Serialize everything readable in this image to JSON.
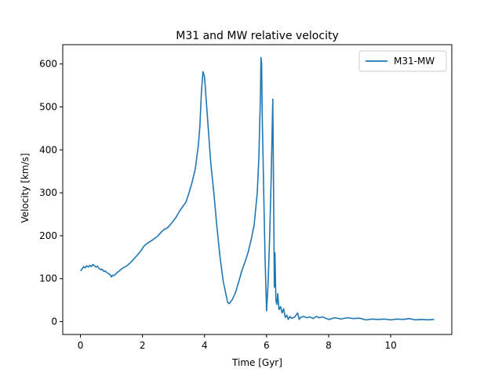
{
  "chart_data": {
    "type": "line",
    "title": "M31 and MW relative velocity",
    "xlabel": "Time [Gyr]",
    "ylabel": "Velocity [km/s]",
    "xlim": [
      -0.57,
      11.97
    ],
    "ylim": [
      -30,
      645
    ],
    "xticks": [
      0,
      2,
      4,
      6,
      8,
      10
    ],
    "yticks": [
      0,
      100,
      200,
      300,
      400,
      500,
      600
    ],
    "grid": false,
    "legend_position": "top-right",
    "series": [
      {
        "name": "M31-MW",
        "color": "#1f77b4",
        "points": [
          [
            0.0,
            118
          ],
          [
            0.05,
            122
          ],
          [
            0.1,
            128
          ],
          [
            0.15,
            125
          ],
          [
            0.2,
            130
          ],
          [
            0.25,
            127
          ],
          [
            0.3,
            131
          ],
          [
            0.35,
            128
          ],
          [
            0.4,
            133
          ],
          [
            0.45,
            130
          ],
          [
            0.5,
            127
          ],
          [
            0.55,
            129
          ],
          [
            0.6,
            124
          ],
          [
            0.65,
            121
          ],
          [
            0.7,
            122
          ],
          [
            0.75,
            117
          ],
          [
            0.8,
            118
          ],
          [
            0.85,
            114
          ],
          [
            0.9,
            112
          ],
          [
            0.95,
            110
          ],
          [
            1.0,
            104
          ],
          [
            1.03,
            108
          ],
          [
            1.08,
            107
          ],
          [
            1.15,
            112
          ],
          [
            1.25,
            118
          ],
          [
            1.35,
            124
          ],
          [
            1.5,
            130
          ],
          [
            1.65,
            140
          ],
          [
            1.8,
            152
          ],
          [
            1.95,
            165
          ],
          [
            2.05,
            176
          ],
          [
            2.15,
            182
          ],
          [
            2.3,
            189
          ],
          [
            2.4,
            194
          ],
          [
            2.5,
            200
          ],
          [
            2.6,
            208
          ],
          [
            2.7,
            215
          ],
          [
            2.8,
            218
          ],
          [
            2.9,
            226
          ],
          [
            3.0,
            235
          ],
          [
            3.1,
            245
          ],
          [
            3.2,
            258
          ],
          [
            3.3,
            268
          ],
          [
            3.4,
            278
          ],
          [
            3.5,
            300
          ],
          [
            3.6,
            325
          ],
          [
            3.7,
            355
          ],
          [
            3.8,
            410
          ],
          [
            3.85,
            455
          ],
          [
            3.9,
            535
          ],
          [
            3.95,
            582
          ],
          [
            4.0,
            570
          ],
          [
            4.05,
            520
          ],
          [
            4.1,
            470
          ],
          [
            4.15,
            420
          ],
          [
            4.2,
            370
          ],
          [
            4.3,
            300
          ],
          [
            4.4,
            220
          ],
          [
            4.5,
            150
          ],
          [
            4.6,
            95
          ],
          [
            4.7,
            60
          ],
          [
            4.75,
            44
          ],
          [
            4.8,
            42
          ],
          [
            4.9,
            52
          ],
          [
            5.0,
            68
          ],
          [
            5.1,
            92
          ],
          [
            5.2,
            118
          ],
          [
            5.3,
            138
          ],
          [
            5.4,
            160
          ],
          [
            5.5,
            190
          ],
          [
            5.6,
            225
          ],
          [
            5.7,
            300
          ],
          [
            5.75,
            380
          ],
          [
            5.8,
            520
          ],
          [
            5.82,
            615
          ],
          [
            5.84,
            600
          ],
          [
            5.86,
            480
          ],
          [
            5.9,
            330
          ],
          [
            5.95,
            150
          ],
          [
            6.0,
            25
          ],
          [
            6.05,
            90
          ],
          [
            6.1,
            200
          ],
          [
            6.15,
            340
          ],
          [
            6.2,
            518
          ],
          [
            6.22,
            350
          ],
          [
            6.25,
            80
          ],
          [
            6.27,
            160
          ],
          [
            6.3,
            50
          ],
          [
            6.33,
            40
          ],
          [
            6.36,
            65
          ],
          [
            6.4,
            28
          ],
          [
            6.45,
            35
          ],
          [
            6.5,
            20
          ],
          [
            6.55,
            30
          ],
          [
            6.6,
            10
          ],
          [
            6.65,
            15
          ],
          [
            6.7,
            5
          ],
          [
            6.75,
            12
          ],
          [
            6.8,
            8
          ],
          [
            6.9,
            10
          ],
          [
            7.0,
            20
          ],
          [
            7.05,
            5
          ],
          [
            7.1,
            10
          ],
          [
            7.2,
            12
          ],
          [
            7.3,
            9
          ],
          [
            7.4,
            11
          ],
          [
            7.5,
            7
          ],
          [
            7.6,
            12
          ],
          [
            7.7,
            9
          ],
          [
            7.8,
            11
          ],
          [
            8.0,
            5
          ],
          [
            8.2,
            9
          ],
          [
            8.4,
            6
          ],
          [
            8.6,
            9
          ],
          [
            8.8,
            7
          ],
          [
            9.0,
            8
          ],
          [
            9.2,
            4
          ],
          [
            9.4,
            6
          ],
          [
            9.6,
            5
          ],
          [
            9.8,
            6
          ],
          [
            10.0,
            4
          ],
          [
            10.2,
            6
          ],
          [
            10.4,
            5
          ],
          [
            10.6,
            7
          ],
          [
            10.8,
            4
          ],
          [
            11.0,
            5
          ],
          [
            11.2,
            4
          ],
          [
            11.4,
            5
          ]
        ]
      }
    ]
  }
}
